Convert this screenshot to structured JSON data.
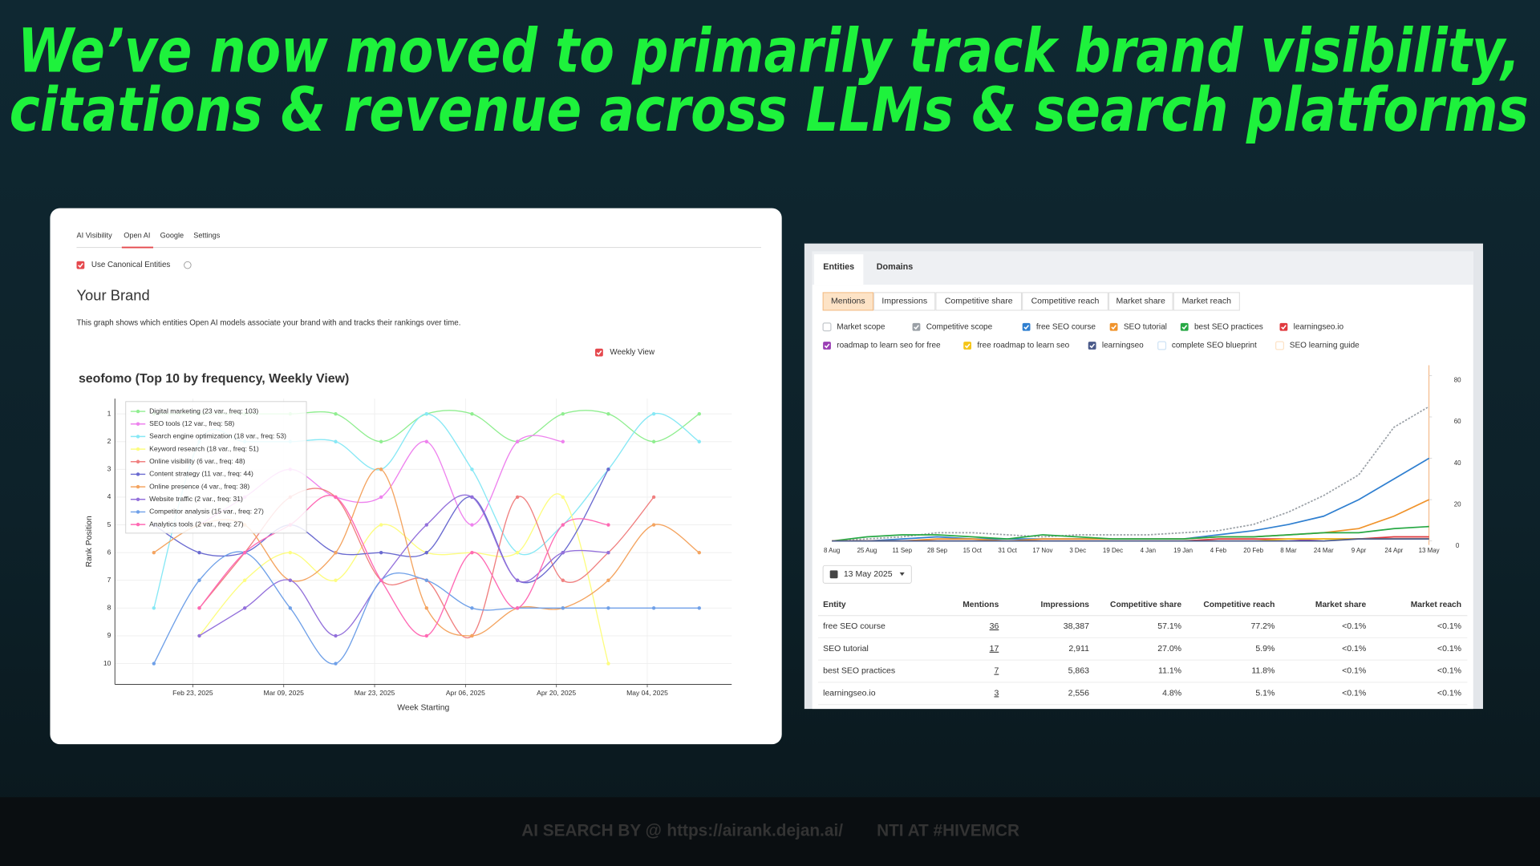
{
  "headline": [
    "We’ve now moved to primarily track brand visibility,",
    "citations & revenue across LLMs & search platforms"
  ],
  "left_panel": {
    "tabs": [
      "AI Visibility",
      "Open AI",
      "Google",
      "Settings"
    ],
    "active_tab": 1,
    "canonical_checkbox": "Use Canonical Entities",
    "heading": "Your Brand",
    "description": "This graph shows which entities Open AI models associate your brand with and tracks their rankings over time.",
    "weekly_checkbox": "Weekly View"
  },
  "chart_data": [
    {
      "type": "line",
      "title": "seofomo (Top 10 by frequency, Weekly View)",
      "x_label": "Week Starting",
      "y_label": "Rank Position",
      "x": [
        "2025-02-17",
        "2025-02-24",
        "2025-03-03",
        "2025-03-10",
        "2025-03-17",
        "2025-03-24",
        "2025-03-31",
        "2025-04-07",
        "2025-04-14",
        "2025-04-21",
        "2025-04-28",
        "2025-05-05",
        "2025-05-12"
      ],
      "xlim": [
        "2025-02-11",
        "2025-05-17"
      ],
      "xticks": [
        {
          "value": "2025-02-23",
          "label": "Feb 23, 2025"
        },
        {
          "value": "2025-03-09",
          "label": "Mar 09, 2025"
        },
        {
          "value": "2025-03-23",
          "label": "Mar 23, 2025"
        },
        {
          "value": "2025-04-06",
          "label": "Apr 06, 2025"
        },
        {
          "value": "2025-04-20",
          "label": "Apr 20, 2025"
        },
        {
          "value": "2025-05-04",
          "label": "May 04, 2025"
        }
      ],
      "ylim": [
        10.75,
        0.45
      ],
      "yticks": [
        1,
        2,
        3,
        4,
        5,
        6,
        7,
        8,
        9,
        10
      ],
      "grid": true,
      "smooth": true,
      "legend": "upper left",
      "series": [
        {
          "name": "Digital marketing (23 var., freq: 103)",
          "color": "#90ee90",
          "values": [
            1,
            1,
            1,
            1,
            1,
            2,
            1,
            1,
            2,
            1,
            1,
            2,
            1
          ]
        },
        {
          "name": "SEO tools (12 var., freq: 58)",
          "color": "#ee82ee",
          "values": [
            null,
            5,
            4,
            3,
            4,
            4,
            2,
            5,
            2,
            2,
            null,
            null,
            null
          ]
        },
        {
          "name": "Search engine optimization (18 var., freq: 53)",
          "color": "#87e8f5",
          "values": [
            8,
            2,
            2,
            2,
            2,
            3,
            1,
            3,
            6,
            5,
            3,
            1,
            2
          ]
        },
        {
          "name": "Keyword research (18 var., freq: 51)",
          "color": "#fdfd80",
          "values": [
            null,
            9,
            7,
            6,
            7,
            5,
            6,
            6,
            6,
            4,
            10,
            null,
            null
          ]
        },
        {
          "name": "Online visibility (6 var., freq: 48)",
          "color": "#f08080",
          "values": [
            null,
            8,
            6,
            4,
            4,
            7,
            7,
            9,
            4,
            7,
            6,
            4,
            null
          ]
        },
        {
          "name": "Content strategy (11 var., freq: 44)",
          "color": "#6a6ad0",
          "values": [
            5,
            6,
            6,
            5,
            6,
            6,
            6,
            4,
            7,
            6,
            3,
            null,
            null
          ]
        },
        {
          "name": "Online presence (4 var., freq: 38)",
          "color": "#f4a460",
          "values": [
            6,
            5,
            5,
            7,
            6,
            3,
            8,
            9,
            8,
            8,
            7,
            5,
            6
          ]
        },
        {
          "name": "Website traffic (2 var., freq: 31)",
          "color": "#9370db",
          "values": [
            null,
            9,
            8,
            7,
            9,
            7,
            5,
            4,
            7,
            6,
            6,
            null,
            null
          ]
        },
        {
          "name": "Competitor analysis (15 var., freq: 27)",
          "color": "#6fa0e8",
          "values": [
            10,
            7,
            6,
            8,
            10,
            7,
            7,
            8,
            8,
            8,
            8,
            8,
            8
          ]
        },
        {
          "name": "Analytics tools (2 var., freq: 27)",
          "color": "#ff69b4",
          "values": [
            null,
            8,
            6,
            5,
            4,
            7,
            9,
            6,
            8,
            5,
            5,
            null,
            null
          ]
        }
      ]
    },
    {
      "type": "line",
      "categories": [
        "8 Aug",
        "25 Aug",
        "11 Sep",
        "28 Sep",
        "15 Oct",
        "31 Oct",
        "17 Nov",
        "3 Dec",
        "19 Dec",
        "4 Jan",
        "19 Jan",
        "4 Feb",
        "20 Feb",
        "8 Mar",
        "24 Mar",
        "9 Apr",
        "24 Apr",
        "13 May"
      ],
      "ylim": [
        0,
        85
      ],
      "yticks": [
        0,
        20,
        40,
        60,
        80
      ],
      "y_axis_side": "right",
      "grid": false,
      "series": [
        {
          "name": "Market scope",
          "color": "#c4c8cc",
          "checked": false
        },
        {
          "name": "Competitive scope",
          "color": "#9aa0a6",
          "checked": true,
          "style": "dashed",
          "values": [
            0,
            1,
            2,
            4,
            4,
            3,
            2,
            3,
            3,
            3,
            4,
            5,
            8,
            14,
            22,
            32,
            55,
            65
          ]
        },
        {
          "name": "free SEO course",
          "color": "#2f7fd0",
          "checked": true,
          "values": [
            0,
            0,
            1,
            2,
            1,
            1,
            1,
            1,
            1,
            1,
            1,
            3,
            5,
            8,
            12,
            20,
            30,
            40
          ]
        },
        {
          "name": "SEO tutorial",
          "color": "#f0932b",
          "checked": true,
          "values": [
            0,
            0,
            0,
            1,
            1,
            0,
            1,
            1,
            1,
            1,
            1,
            2,
            2,
            3,
            4,
            6,
            12,
            20
          ]
        },
        {
          "name": "best SEO practices",
          "color": "#27a844",
          "checked": true,
          "values": [
            0,
            2,
            3,
            3,
            2,
            1,
            3,
            2,
            1,
            1,
            1,
            2,
            2,
            3,
            4,
            4,
            6,
            7
          ]
        },
        {
          "name": "learningseo.io",
          "color": "#e0393e",
          "checked": true,
          "values": [
            0,
            0,
            0,
            0,
            0,
            0,
            0,
            0,
            0,
            0,
            0,
            1,
            1,
            1,
            1,
            1,
            2,
            2
          ]
        },
        {
          "name": "roadmap to learn seo for free",
          "color": "#9b3fb5",
          "checked": true,
          "values": [
            0,
            0,
            0,
            0,
            0,
            0,
            0,
            0,
            0,
            0,
            0,
            0,
            0,
            0,
            1,
            1,
            1,
            1
          ]
        },
        {
          "name": "free roadmap to learn seo",
          "color": "#f5c518",
          "checked": true,
          "values": [
            0,
            0,
            0,
            0,
            0,
            0,
            0,
            0,
            0,
            0,
            0,
            0,
            0,
            1,
            1,
            1,
            1,
            1
          ]
        },
        {
          "name": "learningseo",
          "color": "#4a5a8a",
          "checked": true,
          "values": [
            0,
            0,
            0,
            0,
            0,
            0,
            0,
            0,
            0,
            0,
            0,
            0,
            0,
            0,
            0,
            1,
            1,
            1
          ]
        },
        {
          "name": "complete SEO blueprint",
          "color": "#cfe3f5",
          "checked": false
        },
        {
          "name": "SEO learning guide",
          "color": "#fde3c6",
          "checked": false
        }
      ]
    }
  ],
  "right_panel": {
    "tabs": [
      "Entities",
      "Domains"
    ],
    "active_tab": 0,
    "metric_tabs": [
      "Mentions",
      "Impressions",
      "Competitive share",
      "Competitive reach",
      "Market share",
      "Market reach"
    ],
    "active_metric": 0,
    "date": "13 May 2025",
    "table": {
      "columns": [
        "Entity",
        "Mentions",
        "Impressions",
        "Competitive share",
        "Competitive reach",
        "Market share",
        "Market reach"
      ],
      "rows": [
        [
          "free SEO course",
          "36",
          "38,387",
          "57.1%",
          "77.2%",
          "<0.1%",
          "<0.1%"
        ],
        [
          "SEO tutorial",
          "17",
          "2,911",
          "27.0%",
          "5.9%",
          "<0.1%",
          "<0.1%"
        ],
        [
          "best SEO practices",
          "7",
          "5,863",
          "11.1%",
          "11.8%",
          "<0.1%",
          "<0.1%"
        ],
        [
          "learningseo.io",
          "3",
          "2,556",
          "4.8%",
          "5.1%",
          "<0.1%",
          "<0.1%"
        ]
      ]
    }
  },
  "footer": {
    "byline_start": "AI SEARCH BY @",
    "byline_end": "NTI  AT #HIVEMCR",
    "url": "https://airank.dejan.ai/"
  }
}
